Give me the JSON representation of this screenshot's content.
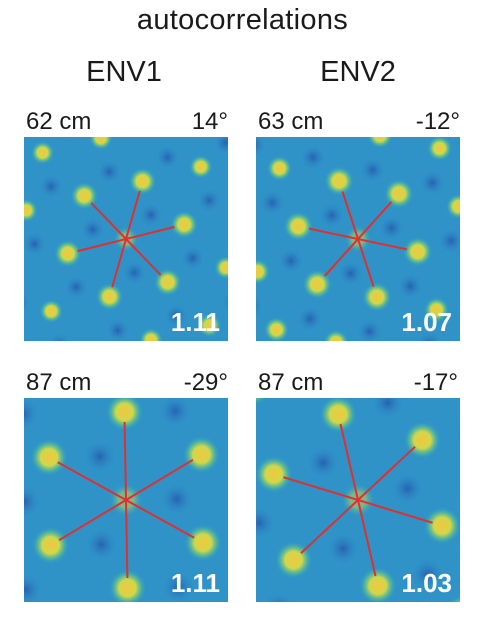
{
  "title": "autocorrelations",
  "columns": [
    "ENV1",
    "ENV2"
  ],
  "colors": {
    "background": "#2f93c8",
    "peak": "#f3c640",
    "trough": "#1e3aa0",
    "axes": "#e0302e",
    "score_text": "#ffffff"
  },
  "panels": [
    {
      "id": "env1-top",
      "spacing": "62 cm",
      "orientation": "14°",
      "gridness": "1.11",
      "axis_angles_deg": [
        14,
        74,
        134
      ]
    },
    {
      "id": "env2-top",
      "spacing": "63 cm",
      "orientation": "-12°",
      "gridness": "1.07",
      "axis_angles_deg": [
        -12,
        48,
        108
      ]
    },
    {
      "id": "env1-bottom",
      "spacing": "87 cm",
      "orientation": "-29°",
      "gridness": "1.11",
      "axis_angles_deg": [
        -29,
        31,
        91
      ]
    },
    {
      "id": "env2-bottom",
      "spacing": "87 cm",
      "orientation": "-17°",
      "gridness": "1.03",
      "axis_angles_deg": [
        -17,
        43,
        103
      ]
    }
  ]
}
